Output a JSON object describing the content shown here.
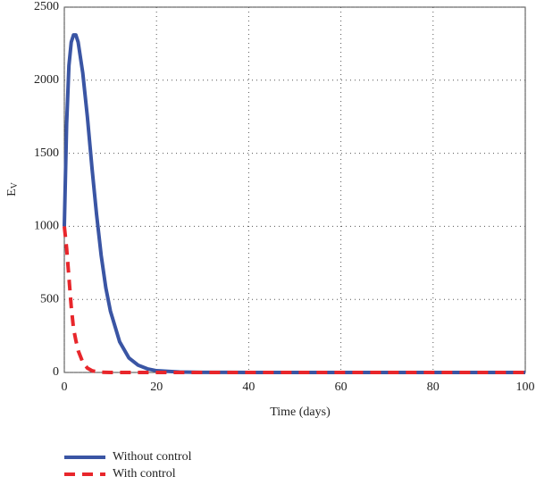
{
  "chart_data": {
    "type": "line",
    "xlabel": "Time (days)",
    "ylabel": "E",
    "ylabel_subscript": "V",
    "x": [
      0,
      0.5,
      1,
      1.5,
      2,
      2.5,
      3,
      4,
      5,
      6,
      7,
      8,
      9,
      10,
      12,
      14,
      16,
      18,
      20,
      25,
      30,
      40,
      50,
      60,
      70,
      80,
      90,
      100
    ],
    "series": [
      {
        "name": "Without control",
        "color": "#3a55a4",
        "dash": false,
        "values": [
          1000,
          1700,
          2100,
          2260,
          2310,
          2310,
          2260,
          2050,
          1750,
          1400,
          1080,
          800,
          580,
          420,
          210,
          100,
          50,
          25,
          12,
          3,
          1,
          0,
          0,
          0,
          0,
          0,
          0,
          0
        ]
      },
      {
        "name": "With control",
        "color": "#e8262b",
        "dash": true,
        "values": [
          1000,
          850,
          650,
          450,
          300,
          220,
          150,
          70,
          30,
          12,
          5,
          2,
          1,
          0,
          0,
          0,
          0,
          0,
          0,
          0,
          0,
          0,
          0,
          0,
          0,
          0,
          0,
          0
        ]
      }
    ],
    "xlim": [
      0,
      100
    ],
    "xticks": [
      0,
      20,
      40,
      60,
      80,
      100
    ],
    "ylim": [
      0,
      2500
    ],
    "yticks": [
      0,
      500,
      1000,
      1500,
      2000,
      2500
    ],
    "grid": true,
    "legend": "below"
  }
}
